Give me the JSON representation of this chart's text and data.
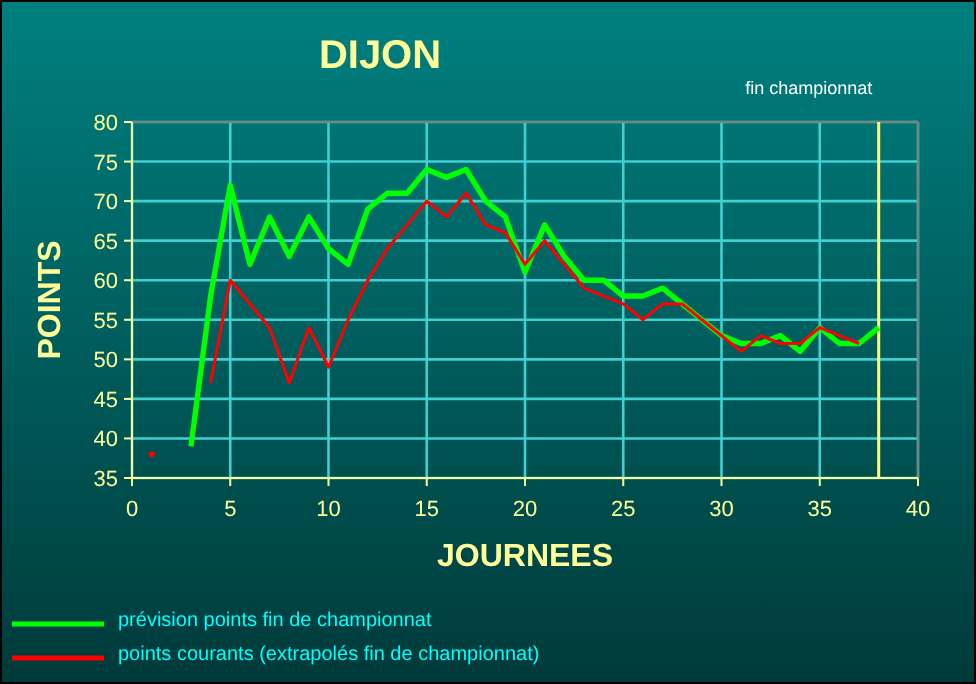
{
  "chart_data": {
    "type": "line",
    "title": "DIJON",
    "xlabel": "JOURNEES",
    "ylabel": "POINTS",
    "xlim": [
      0,
      40
    ],
    "xticks": [
      0,
      5,
      10,
      15,
      20,
      25,
      30,
      35,
      40
    ],
    "ylim": [
      35,
      80
    ],
    "yticks": [
      35,
      40,
      45,
      50,
      55,
      60,
      65,
      70,
      75,
      80
    ],
    "grid": true,
    "legend": "bottom",
    "marker": "none",
    "line_style": "solid",
    "ref_lines": [
      {
        "axis": "x",
        "value": 38,
        "label": "fin championnat",
        "color": "#ffff80"
      }
    ],
    "series": [
      {
        "name": "prévision points fin de championnat",
        "color": "#00ff00",
        "x": [
          3,
          4,
          5,
          6,
          7,
          8,
          9,
          10,
          11,
          12,
          13,
          14,
          15,
          16,
          17,
          18,
          19,
          20,
          21,
          22,
          23,
          24,
          25,
          26,
          27,
          28,
          29,
          30,
          31,
          32,
          33,
          34,
          35,
          36,
          37,
          38
        ],
        "values": [
          39,
          58,
          72,
          62,
          68,
          63,
          68,
          64,
          62,
          69,
          71,
          71,
          74,
          73,
          74,
          70,
          68,
          61,
          67,
          63,
          60,
          60,
          58,
          58,
          59,
          57,
          55,
          53,
          52,
          52,
          53,
          51,
          54,
          52,
          52,
          54
        ]
      },
      {
        "name": "points courants (extrapolés fin de championnat)",
        "color": "#ff0000",
        "x": [
          1,
          2,
          3,
          4,
          5,
          6,
          7,
          8,
          9,
          10,
          11,
          12,
          13,
          14,
          15,
          16,
          17,
          18,
          19,
          20,
          21,
          22,
          23,
          24,
          25,
          26,
          27,
          28,
          29,
          30,
          31,
          32,
          33,
          34,
          35,
          36,
          37
        ],
        "values": [
          38,
          null,
          null,
          47,
          60,
          57,
          54,
          47,
          54,
          49,
          55,
          60,
          64,
          67,
          70,
          68,
          71,
          67,
          66,
          62,
          65,
          62,
          59,
          58,
          57,
          55,
          57,
          57,
          55,
          53,
          51,
          53,
          52,
          52,
          54,
          53,
          52
        ]
      }
    ]
  }
}
